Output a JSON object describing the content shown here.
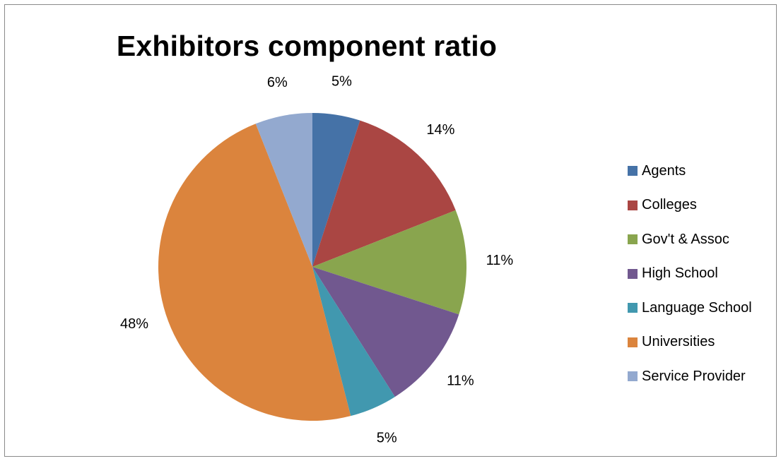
{
  "chart_data": {
    "type": "pie",
    "title": "Exhibitors component ratio",
    "categories": [
      "Agents",
      "Colleges",
      "Gov't & Assoc",
      "High School",
      "Language School",
      "Universities",
      "Service Provider"
    ],
    "values": [
      5,
      14,
      11,
      11,
      5,
      48,
      6
    ],
    "data_labels": [
      "5%",
      "14%",
      "11%",
      "11%",
      "5%",
      "48%",
      "6%"
    ],
    "colors": [
      "#4572A7",
      "#AA4643",
      "#89A54E",
      "#71588F",
      "#4198AF",
      "#DB843D",
      "#93A9CF"
    ],
    "legend_position": "right"
  }
}
